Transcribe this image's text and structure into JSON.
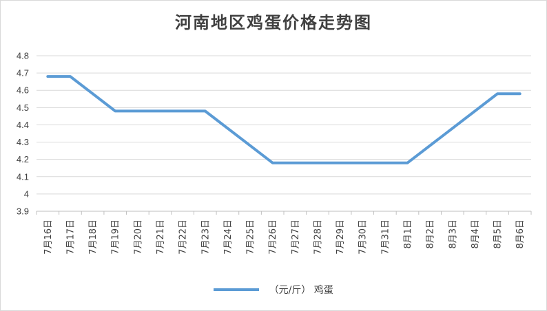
{
  "chart_data": {
    "type": "line",
    "title": "河南地区鸡蛋价格走势图",
    "categories": [
      "7月16日",
      "7月17日",
      "7月18日",
      "7月19日",
      "7月20日",
      "7月21日",
      "7月22日",
      "7月23日",
      "7月24日",
      "7月25日",
      "7月26日",
      "7月27日",
      "7月28日",
      "7月29日",
      "7月30日",
      "7月31日",
      "8月1日",
      "8月2日",
      "8月3日",
      "8月4日",
      "8月5日",
      "8月6日"
    ],
    "series": [
      {
        "name": "（元/斤） 鸡蛋",
        "values": [
          4.68,
          4.68,
          null,
          4.48,
          4.48,
          4.48,
          4.48,
          4.48,
          null,
          null,
          4.18,
          4.18,
          4.18,
          4.18,
          4.18,
          4.18,
          4.18,
          null,
          null,
          null,
          4.58,
          4.58
        ],
        "color": "#5b9bd5"
      }
    ],
    "ylim": [
      3.9,
      4.8
    ],
    "yticks": [
      "3.9",
      "4",
      "4.1",
      "4.2",
      "4.3",
      "4.4",
      "4.5",
      "4.6",
      "4.7",
      "4.8"
    ],
    "grid": true,
    "legend_position": "bottom",
    "gaps": "connect"
  }
}
